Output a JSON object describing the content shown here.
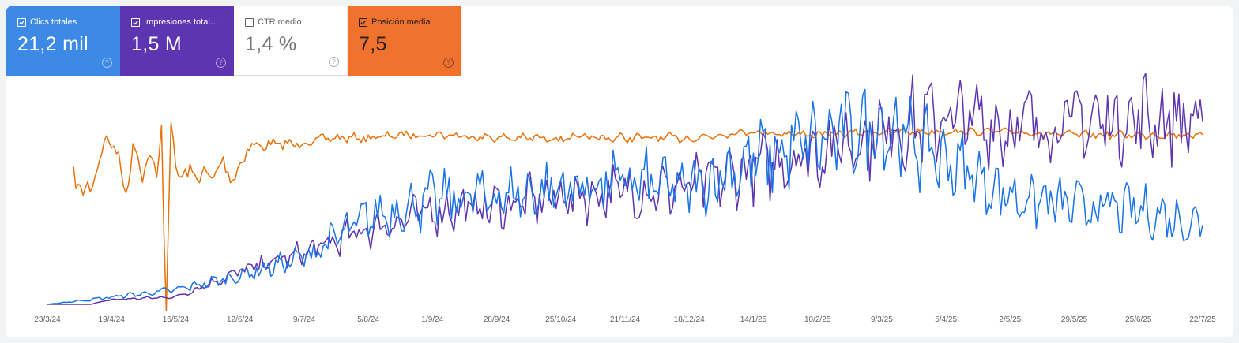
{
  "colors": {
    "clicks": "#1a73e8",
    "impressions": "#5e35b1",
    "ctr": "#ffffff",
    "position": "#e8710a"
  },
  "metrics": [
    {
      "id": "clicks",
      "label": "Clics totales",
      "value": "21,2 mil",
      "checked": true,
      "color": "#3c8ae6",
      "icon": "checkbox-checked-icon"
    },
    {
      "id": "impressions",
      "label": "Impresiones total…",
      "value": "1,5 M",
      "checked": true,
      "color": "#5e35b1",
      "icon": "checkbox-checked-icon"
    },
    {
      "id": "ctr",
      "label": "CTR medio",
      "value": "1,4 %",
      "checked": false,
      "color": "#ffffff",
      "icon": "checkbox-empty-icon"
    },
    {
      "id": "position",
      "label": "Posición media",
      "value": "7,5",
      "checked": true,
      "color": "#f0722d",
      "icon": "checkbox-checked-icon"
    }
  ],
  "help_icon": "help-circle-icon",
  "chart_data": {
    "type": "line",
    "title": "",
    "xlabel": "",
    "ylabel": "",
    "grid": false,
    "legend": "metric cards above chart",
    "x_ticks": [
      "23/3/24",
      "19/4/24",
      "16/5/24",
      "12/6/24",
      "9/7/24",
      "5/8/24",
      "1/9/24",
      "28/9/24",
      "25/10/24",
      "21/11/24",
      "18/12/24",
      "14/1/25",
      "10/2/25",
      "9/3/25",
      "5/4/25",
      "2/5/25",
      "29/5/25",
      "25/6/25",
      "22/7/25"
    ],
    "series": [
      {
        "id": "position",
        "name": "Posición media",
        "color": "#e8710a",
        "scale": "inverted-relative",
        "values": [
          {
            "x": "2024-04-03",
            "y": 22
          },
          {
            "x": "2024-04-07",
            "y": 25
          },
          {
            "x": "2024-04-10",
            "y": 26
          },
          {
            "x": "2024-04-13",
            "y": 17
          },
          {
            "x": "2024-04-17",
            "y": 9
          },
          {
            "x": "2024-04-20",
            "y": 12
          },
          {
            "x": "2024-04-22",
            "y": 14
          },
          {
            "x": "2024-04-25",
            "y": 29
          },
          {
            "x": "2024-04-28",
            "y": 10
          },
          {
            "x": "2024-05-02",
            "y": 21
          },
          {
            "x": "2024-05-05",
            "y": 13
          },
          {
            "x": "2024-05-08",
            "y": 24
          },
          {
            "x": "2024-05-10",
            "y": 5
          },
          {
            "x": "2024-05-12",
            "y": 61
          },
          {
            "x": "2024-05-14",
            "y": 4
          },
          {
            "x": "2024-05-16",
            "y": 19
          },
          {
            "x": "2024-05-20",
            "y": 21
          },
          {
            "x": "2024-05-25",
            "y": 20
          },
          {
            "x": "2024-05-30",
            "y": 22
          },
          {
            "x": "2024-06-05",
            "y": 17
          },
          {
            "x": "2024-06-10",
            "y": 22
          },
          {
            "x": "2024-06-15",
            "y": 12
          },
          {
            "x": "2024-06-25",
            "y": 11
          },
          {
            "x": "2024-07-05",
            "y": 11
          },
          {
            "x": "2024-07-20",
            "y": 9
          },
          {
            "x": "2024-08-05",
            "y": 9
          },
          {
            "x": "2024-08-20",
            "y": 8
          },
          {
            "x": "2024-09-05",
            "y": 8
          },
          {
            "x": "2024-10-01",
            "y": 9
          },
          {
            "x": "2024-10-25",
            "y": 9
          },
          {
            "x": "2024-11-20",
            "y": 9
          },
          {
            "x": "2024-12-20",
            "y": 9
          },
          {
            "x": "2025-01-10",
            "y": 7
          },
          {
            "x": "2025-02-10",
            "y": 8
          },
          {
            "x": "2025-03-09",
            "y": 7
          },
          {
            "x": "2025-04-05",
            "y": 7
          },
          {
            "x": "2025-05-02",
            "y": 7
          },
          {
            "x": "2025-05-29",
            "y": 8
          },
          {
            "x": "2025-06-25",
            "y": 8
          },
          {
            "x": "2025-07-22",
            "y": 8
          }
        ]
      },
      {
        "id": "impressions",
        "name": "Impresiones totales",
        "color": "#5e35b1",
        "values": [
          {
            "x": "2024-03-23",
            "y": 0
          },
          {
            "x": "2024-04-10",
            "y": 0
          },
          {
            "x": "2024-04-19",
            "y": 500
          },
          {
            "x": "2024-05-16",
            "y": 800
          },
          {
            "x": "2024-06-12",
            "y": 3500
          },
          {
            "x": "2024-07-09",
            "y": 5500
          },
          {
            "x": "2024-08-05",
            "y": 8000
          },
          {
            "x": "2024-09-01",
            "y": 10000
          },
          {
            "x": "2024-09-28",
            "y": 10500
          },
          {
            "x": "2024-10-25",
            "y": 11500
          },
          {
            "x": "2024-11-21",
            "y": 12000
          },
          {
            "x": "2024-12-18",
            "y": 12500
          },
          {
            "x": "2025-01-14",
            "y": 14500
          },
          {
            "x": "2025-02-10",
            "y": 16500
          },
          {
            "x": "2025-03-09",
            "y": 18500
          },
          {
            "x": "2025-04-05",
            "y": 20000
          },
          {
            "x": "2025-05-02",
            "y": 19000
          },
          {
            "x": "2025-05-29",
            "y": 19500
          },
          {
            "x": "2025-06-25",
            "y": 20000
          },
          {
            "x": "2025-07-22",
            "y": 19500
          }
        ]
      },
      {
        "id": "clicks",
        "name": "Clics totales",
        "color": "#1a73e8",
        "values": [
          {
            "x": "2024-03-23",
            "y": 0
          },
          {
            "x": "2024-04-19",
            "y": 10
          },
          {
            "x": "2024-05-16",
            "y": 20
          },
          {
            "x": "2024-06-12",
            "y": 40
          },
          {
            "x": "2024-07-09",
            "y": 65
          },
          {
            "x": "2024-08-05",
            "y": 120
          },
          {
            "x": "2024-09-01",
            "y": 145
          },
          {
            "x": "2024-09-28",
            "y": 150
          },
          {
            "x": "2024-10-25",
            "y": 160
          },
          {
            "x": "2024-11-21",
            "y": 170
          },
          {
            "x": "2024-12-18",
            "y": 160
          },
          {
            "x": "2025-01-14",
            "y": 200
          },
          {
            "x": "2025-02-10",
            "y": 225
          },
          {
            "x": "2025-03-09",
            "y": 250
          },
          {
            "x": "2025-04-05",
            "y": 200
          },
          {
            "x": "2025-05-02",
            "y": 150
          },
          {
            "x": "2025-05-29",
            "y": 135
          },
          {
            "x": "2025-06-25",
            "y": 130
          },
          {
            "x": "2025-07-22",
            "y": 110
          }
        ]
      }
    ]
  }
}
